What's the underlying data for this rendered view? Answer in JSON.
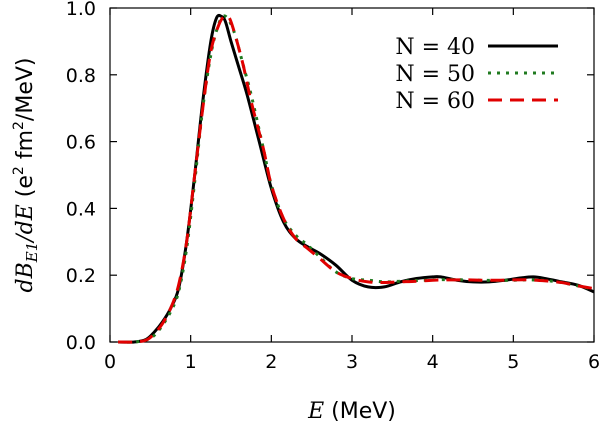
{
  "chart_data": {
    "type": "line",
    "title": "",
    "xlabel": "E (MeV)",
    "ylabel": "dB_E1/dE (e² fm²/MeV)",
    "xlim": [
      0,
      6
    ],
    "ylim": [
      0,
      1.0
    ],
    "x_ticks": [
      "0",
      "1",
      "2",
      "3",
      "4",
      "5",
      "6"
    ],
    "y_ticks": [
      "0.0",
      "0.2",
      "0.4",
      "0.6",
      "0.8",
      "1.0"
    ],
    "grid": false,
    "legend_position": "top-right",
    "series": [
      {
        "name": "N = 40",
        "color": "#000000",
        "dash": "solid",
        "x": [
          0.1,
          0.3,
          0.45,
          0.55,
          0.65,
          0.75,
          0.85,
          0.95,
          1.05,
          1.15,
          1.25,
          1.32,
          1.38,
          1.43,
          1.5,
          1.6,
          1.7,
          1.85,
          2.0,
          2.15,
          2.3,
          2.45,
          2.6,
          2.8,
          3.0,
          3.2,
          3.4,
          3.6,
          3.8,
          4.0,
          4.1,
          4.3,
          4.5,
          4.7,
          4.9,
          5.1,
          5.25,
          5.4,
          5.6,
          5.8,
          6.0
        ],
        "y": [
          0.0,
          0.0,
          0.008,
          0.03,
          0.06,
          0.1,
          0.16,
          0.3,
          0.5,
          0.72,
          0.9,
          0.97,
          0.975,
          0.96,
          0.9,
          0.82,
          0.74,
          0.6,
          0.46,
          0.36,
          0.31,
          0.285,
          0.265,
          0.23,
          0.185,
          0.165,
          0.165,
          0.18,
          0.19,
          0.195,
          0.195,
          0.185,
          0.18,
          0.18,
          0.185,
          0.192,
          0.195,
          0.19,
          0.18,
          0.17,
          0.15
        ]
      },
      {
        "name": "N = 50",
        "color": "#1f7a1f",
        "dash": "dotted",
        "x": [
          0.1,
          0.3,
          0.45,
          0.55,
          0.65,
          0.75,
          0.85,
          0.95,
          1.05,
          1.15,
          1.25,
          1.33,
          1.4,
          1.47,
          1.55,
          1.65,
          1.75,
          1.9,
          2.0,
          2.15,
          2.3,
          2.45,
          2.6,
          2.8,
          3.0,
          3.2,
          3.4,
          3.6,
          3.8,
          4.0,
          4.2,
          4.4,
          4.6,
          4.8,
          5.0,
          5.2,
          5.4,
          5.6,
          5.8,
          6.0
        ],
        "y": [
          0.0,
          0.0,
          0.006,
          0.02,
          0.05,
          0.09,
          0.15,
          0.28,
          0.48,
          0.7,
          0.86,
          0.94,
          0.975,
          0.965,
          0.92,
          0.83,
          0.74,
          0.58,
          0.47,
          0.37,
          0.32,
          0.29,
          0.255,
          0.21,
          0.19,
          0.185,
          0.18,
          0.182,
          0.184,
          0.186,
          0.187,
          0.186,
          0.185,
          0.184,
          0.185,
          0.186,
          0.184,
          0.178,
          0.168,
          0.158
        ]
      },
      {
        "name": "N = 60",
        "color": "#e00000",
        "dash": "dashed",
        "x": [
          0.1,
          0.3,
          0.45,
          0.55,
          0.65,
          0.75,
          0.85,
          0.95,
          1.05,
          1.15,
          1.25,
          1.35,
          1.42,
          1.48,
          1.55,
          1.65,
          1.75,
          1.9,
          2.0,
          2.15,
          2.3,
          2.45,
          2.6,
          2.8,
          3.0,
          3.2,
          3.4,
          3.6,
          3.8,
          4.0,
          4.2,
          4.4,
          4.6,
          4.8,
          5.0,
          5.2,
          5.4,
          5.6,
          5.8,
          6.0
        ],
        "y": [
          0.0,
          0.0,
          0.006,
          0.025,
          0.055,
          0.1,
          0.17,
          0.3,
          0.5,
          0.7,
          0.87,
          0.95,
          0.975,
          0.97,
          0.92,
          0.83,
          0.72,
          0.58,
          0.47,
          0.37,
          0.31,
          0.28,
          0.25,
          0.21,
          0.19,
          0.18,
          0.178,
          0.18,
          0.182,
          0.185,
          0.186,
          0.186,
          0.185,
          0.185,
          0.186,
          0.186,
          0.183,
          0.178,
          0.168,
          0.16
        ]
      }
    ]
  },
  "labels": {
    "xlabel_var": "E",
    "xlabel_unit": " (MeV)",
    "ylabel_main": "dB",
    "ylabel_sub": "E1",
    "ylabel_tail": "/dE",
    "ylabel_unit_a": " (e",
    "ylabel_unit_sup": "2",
    "ylabel_unit_b": " fm",
    "ylabel_unit_sup2": "2",
    "ylabel_unit_c": "/MeV)"
  }
}
